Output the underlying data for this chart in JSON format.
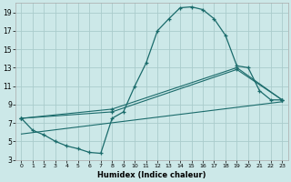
{
  "xlabel": "Humidex (Indice chaleur)",
  "bg_color": "#cce8e8",
  "grid_color": "#aacccc",
  "line_color": "#1a6b6b",
  "xlim": [
    -0.5,
    23.5
  ],
  "ylim": [
    3,
    20
  ],
  "xticks": [
    0,
    1,
    2,
    3,
    4,
    5,
    6,
    7,
    8,
    9,
    10,
    11,
    12,
    13,
    14,
    15,
    16,
    17,
    18,
    19,
    20,
    21,
    22,
    23
  ],
  "yticks": [
    3,
    5,
    7,
    9,
    11,
    13,
    15,
    17,
    19
  ],
  "curve1_x": [
    0,
    1,
    2,
    3,
    4,
    5,
    6,
    7,
    8,
    9,
    10,
    11,
    12,
    13,
    14,
    15,
    16,
    17,
    18,
    19,
    20,
    21,
    22,
    23
  ],
  "curve1_y": [
    7.5,
    6.2,
    5.7,
    5.0,
    4.5,
    4.2,
    3.8,
    3.7,
    7.5,
    8.2,
    11.0,
    13.5,
    17.0,
    18.3,
    19.5,
    19.6,
    19.3,
    18.3,
    16.5,
    13.2,
    13.0,
    10.5,
    9.5,
    9.5
  ],
  "curve2_x": [
    0,
    8,
    19,
    23
  ],
  "curve2_y": [
    7.5,
    8.5,
    13.0,
    9.5
  ],
  "curve3_x": [
    0,
    23
  ],
  "curve3_y": [
    5.8,
    9.3
  ],
  "curve4_x": [
    0,
    8,
    19,
    23
  ],
  "curve4_y": [
    7.5,
    8.2,
    12.8,
    9.5
  ]
}
